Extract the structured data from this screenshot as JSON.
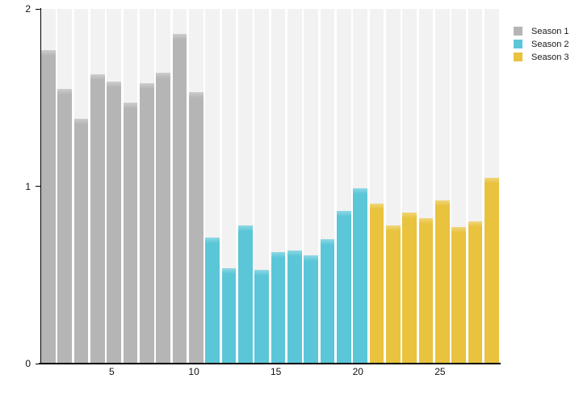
{
  "chart_data": {
    "type": "bar",
    "title": "",
    "xlabel": "",
    "ylabel": "",
    "ylim": [
      0,
      2
    ],
    "yticks": [
      0,
      1,
      2
    ],
    "xticks": [
      5,
      10,
      15,
      20,
      25
    ],
    "n_bars": 28,
    "grid": false,
    "legend_position": "top-right",
    "background_band_color": "#f2f2f2",
    "axis_color": "#000000",
    "series": [
      {
        "name": "Season 1",
        "color": "#b5b5b5",
        "x_start": 1,
        "values": [
          1.77,
          1.55,
          1.38,
          1.63,
          1.59,
          1.47,
          1.58,
          1.64,
          1.86,
          1.53
        ]
      },
      {
        "name": "Season 2",
        "color": "#5bc6d8",
        "x_start": 11,
        "values": [
          0.71,
          0.54,
          0.78,
          0.53,
          0.63,
          0.64,
          0.61,
          0.7,
          0.86,
          0.99
        ]
      },
      {
        "name": "Season 3",
        "color": "#e9c23e",
        "x_start": 21,
        "values": [
          0.9,
          0.78,
          0.85,
          0.82,
          0.92,
          0.77,
          0.8,
          1.05
        ]
      }
    ]
  }
}
